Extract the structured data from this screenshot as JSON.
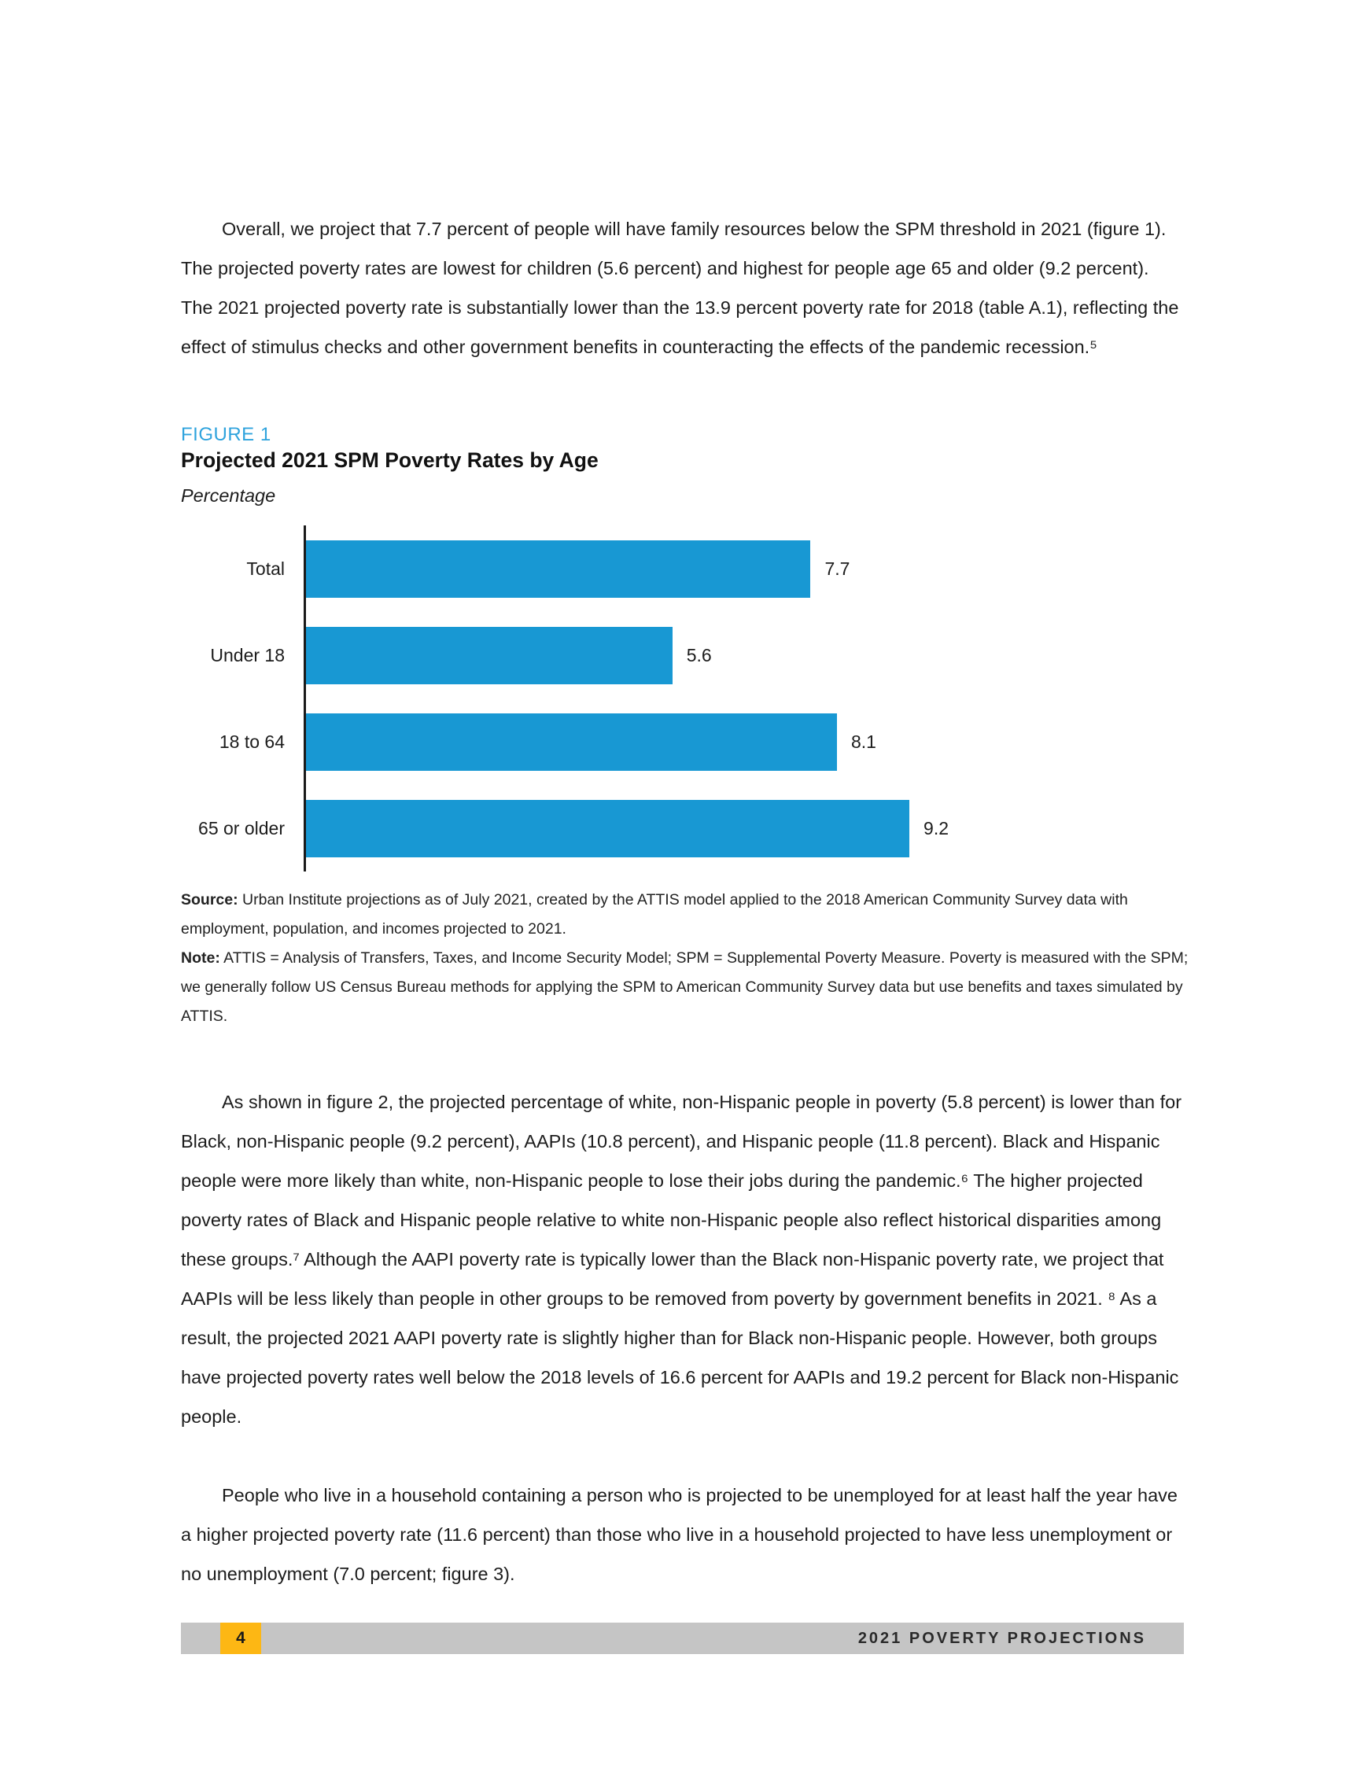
{
  "paragraphs": {
    "p1": "Overall, we project that 7.7 percent of people will have family resources below the SPM threshold in 2021 (figure 1). The projected poverty rates are lowest for children (5.6 percent) and highest for people age 65 and older (9.2 percent). The 2021 projected poverty rate is substantially lower than the 13.9 percent poverty rate for 2018 (table A.1), reflecting the effect of stimulus checks and other government benefits in counteracting the effects of the pandemic recession.⁵",
    "p2": "As shown in figure 2, the projected percentage of white, non-Hispanic people in poverty (5.8 percent) is lower than for Black, non-Hispanic people (9.2 percent), AAPIs (10.8 percent), and Hispanic people (11.8 percent). Black and Hispanic people were more likely than white, non-Hispanic people to lose their jobs during the pandemic.⁶ The higher projected poverty rates of Black and Hispanic people relative to white non-Hispanic people also reflect historical disparities among these groups.⁷ Although the AAPI poverty rate is typically lower than the Black non-Hispanic poverty rate, we project that AAPIs will be less likely than people in other groups to be removed from poverty by government benefits in 2021. ⁸ As a result, the projected 2021 AAPI poverty rate is slightly higher than for Black non-Hispanic people. However, both groups have projected poverty rates well below the 2018 levels of 16.6 percent for AAPIs and 19.2 percent for Black non-Hispanic people.",
    "p3": "People who live in a household containing a person who is projected to be unemployed for at least half the year have a higher projected poverty rate (11.6 percent) than those who live in a household projected to have less unemployment or no unemployment (7.0 percent; figure 3)."
  },
  "figure": {
    "label": "FIGURE 1",
    "title": "Projected 2021 SPM Poverty Rates by Age",
    "subtitle": "Percentage",
    "source_label": "Source:",
    "source_text": " Urban Institute projections as of July 2021, created by the ATTIS model applied to the 2018 American Community Survey data with employment, population, and incomes projected to 2021.",
    "note_label": "Note:",
    "note_text": " ATTIS = Analysis of Transfers, Taxes, and Income Security Model; SPM = Supplemental Poverty Measure. Poverty is measured with the SPM; we generally follow US Census Bureau methods for applying the SPM to American Community Survey data but use benefits and taxes simulated by ATTIS."
  },
  "chart_data": {
    "type": "bar",
    "orientation": "horizontal",
    "title": "Projected 2021 SPM Poverty Rates by Age",
    "xlabel": "",
    "ylabel": "Percentage",
    "categories": [
      "Total",
      "Under 18",
      "18 to 64",
      "65 or older"
    ],
    "values": [
      7.7,
      5.6,
      8.1,
      9.2
    ],
    "data_labels": [
      "7.7",
      "5.6",
      "8.1",
      "9.2"
    ],
    "xlim": [
      0,
      13.3
    ],
    "grid": false,
    "legend": "none",
    "bar_color": "#1898d3"
  },
  "footer": {
    "page_number": "4",
    "text": "2021 POVERTY PROJECTIONS"
  },
  "colors": {
    "bar": "#1898d3",
    "figure_label": "#2fa3dd",
    "footer_gray": "#c5c5c5",
    "footer_yellow": "#fdb714"
  }
}
